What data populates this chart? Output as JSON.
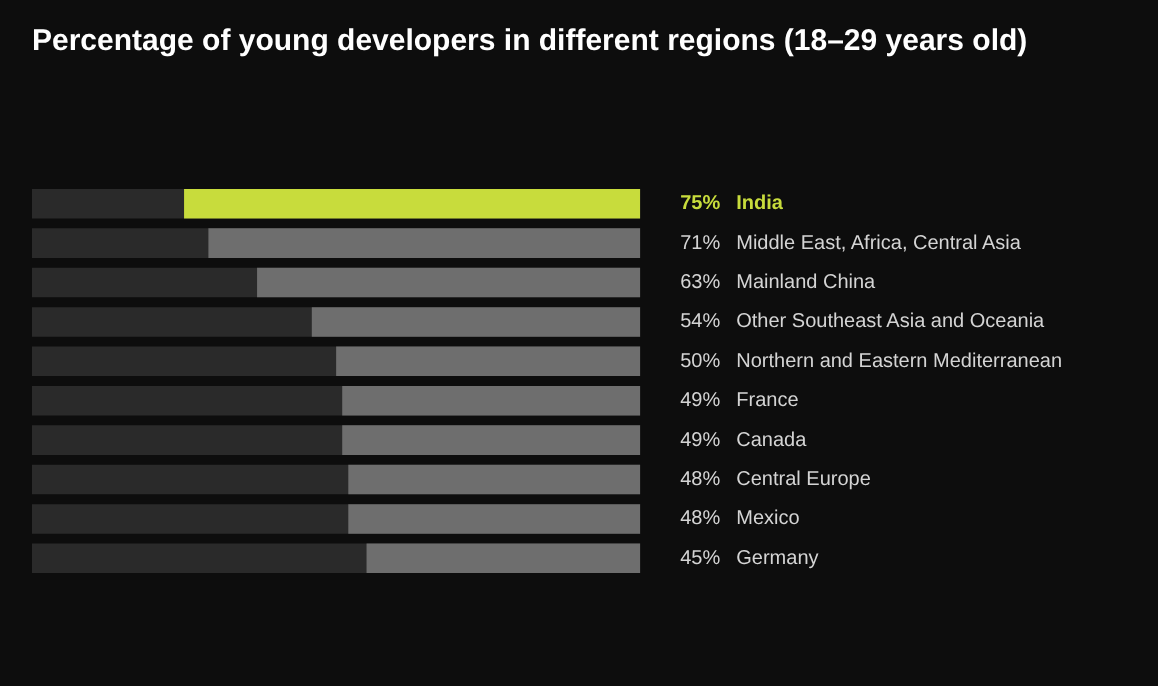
{
  "chart_data": {
    "type": "bar",
    "orientation": "horizontal",
    "title": "Percentage of young developers in different regions (18–29 years old)",
    "categories": [
      "India",
      "Middle East, Africa, Central Asia",
      "Mainland China",
      "Other Southeast Asia and Oceania",
      "Northern and Eastern Mediterranean",
      "France",
      "Canada",
      "Central Europe",
      "Mexico",
      "Germany"
    ],
    "values": [
      75,
      71,
      63,
      54,
      50,
      49,
      49,
      48,
      48,
      45
    ],
    "value_labels": [
      "75%",
      "71%",
      "63%",
      "54%",
      "50%",
      "49%",
      "49%",
      "48%",
      "48%",
      "45%"
    ],
    "colors": [
      "#c8dc3c",
      "#6e6e6e",
      "#6e6e6e",
      "#6e6e6e",
      "#6e6e6e",
      "#6e6e6e",
      "#6e6e6e",
      "#6e6e6e",
      "#6e6e6e",
      "#6e6e6e"
    ],
    "xlim": [
      100,
      0
    ],
    "legend": false,
    "tick_labels": "y"
  }
}
